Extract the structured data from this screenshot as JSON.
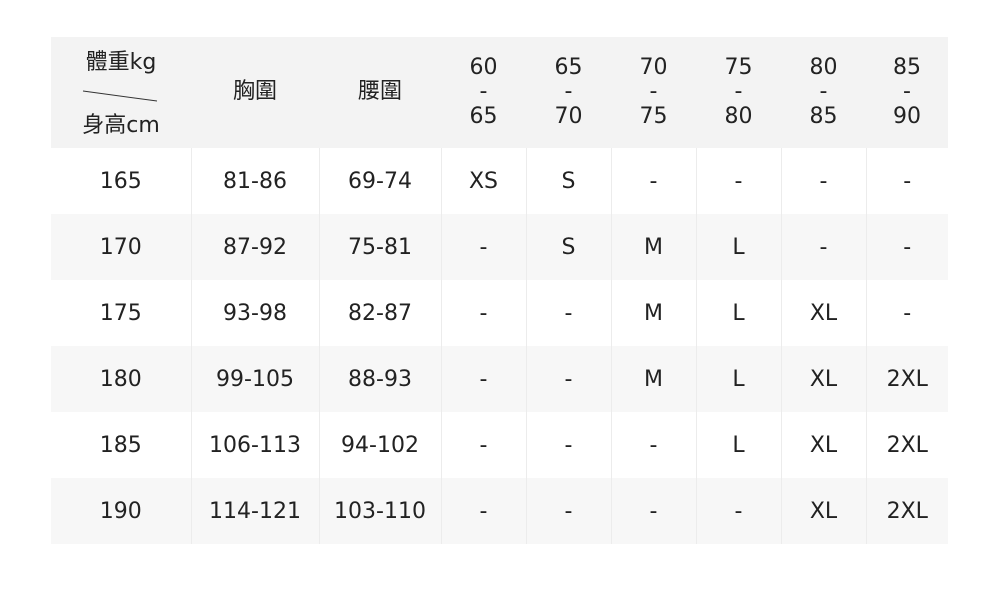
{
  "header": {
    "corner_top": "體重kg",
    "corner_bottom": "身高cm",
    "chest": "胸圍",
    "waist": "腰圍",
    "weights": [
      {
        "from": "60",
        "to": "65"
      },
      {
        "from": "65",
        "to": "70"
      },
      {
        "from": "70",
        "to": "75"
      },
      {
        "from": "75",
        "to": "80"
      },
      {
        "from": "80",
        "to": "85"
      },
      {
        "from": "85",
        "to": "90"
      }
    ]
  },
  "rows": [
    [
      "165",
      "81-86",
      "69-74",
      "XS",
      "S",
      "-",
      "-",
      "-",
      "-"
    ],
    [
      "170",
      "87-92",
      "75-81",
      "-",
      "S",
      "M",
      "L",
      "-",
      "-"
    ],
    [
      "175",
      "93-98",
      "82-87",
      "-",
      "-",
      "M",
      "L",
      "XL",
      "-"
    ],
    [
      "180",
      "99-105",
      "88-93",
      "-",
      "-",
      "M",
      "L",
      "XL",
      "2XL"
    ],
    [
      "185",
      "106-113",
      "94-102",
      "-",
      "-",
      "-",
      "L",
      "XL",
      "2XL"
    ],
    [
      "190",
      "114-121",
      "103-110",
      "-",
      "-",
      "-",
      "-",
      "XL",
      "2XL"
    ]
  ]
}
